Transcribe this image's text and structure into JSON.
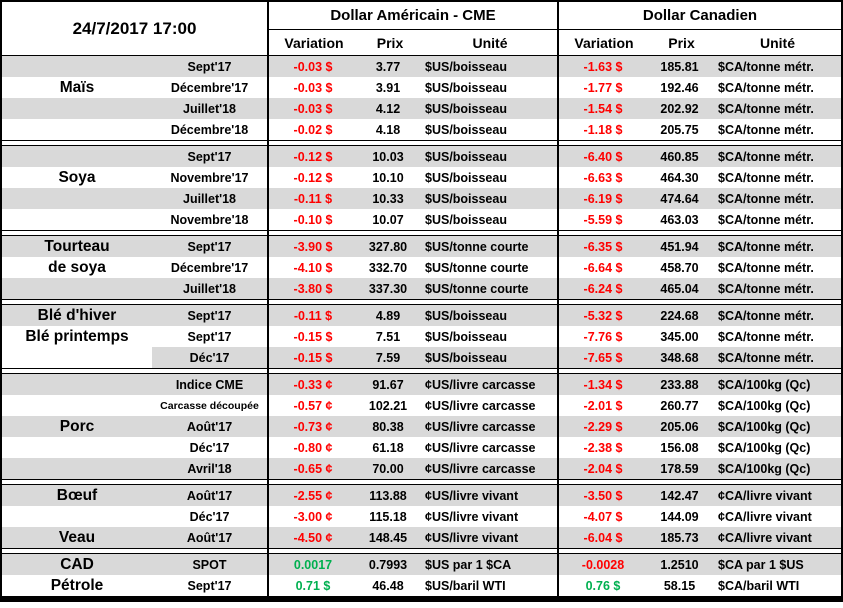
{
  "meta": {
    "timestamp": "24/7/2017 17:00"
  },
  "header": {
    "us_title": "Dollar Américain - CME",
    "ca_title": "Dollar Canadien",
    "variation_label": "Variation",
    "prix_label": "Prix",
    "unite_label": "Unité"
  },
  "colors": {
    "negative": "#FF0000",
    "positive": "#00B050",
    "row_shade": "#D9D9D9",
    "border": "#000000"
  },
  "groups": [
    {
      "name": "Maïs",
      "rows": [
        {
          "label": "",
          "month": "Sept'17",
          "shaded": true,
          "shade_from_month": false,
          "small_month": false,
          "us_var": "-0.03 $",
          "us_sign": "negative",
          "us_price": "3.77",
          "us_unit": "$US/boisseau",
          "ca_var": "-1.63 $",
          "ca_sign": "negative",
          "ca_price": "185.81",
          "ca_unit": "$CA/tonne métr."
        },
        {
          "label": "Maïs",
          "month": "Décembre'17",
          "shaded": false,
          "shade_from_month": false,
          "small_month": false,
          "us_var": "-0.03 $",
          "us_sign": "negative",
          "us_price": "3.91",
          "us_unit": "$US/boisseau",
          "ca_var": "-1.77 $",
          "ca_sign": "negative",
          "ca_price": "192.46",
          "ca_unit": "$CA/tonne métr."
        },
        {
          "label": "",
          "month": "Juillet'18",
          "shaded": true,
          "shade_from_month": false,
          "small_month": false,
          "us_var": "-0.03 $",
          "us_sign": "negative",
          "us_price": "4.12",
          "us_unit": "$US/boisseau",
          "ca_var": "-1.54 $",
          "ca_sign": "negative",
          "ca_price": "202.92",
          "ca_unit": "$CA/tonne métr."
        },
        {
          "label": "",
          "month": "Décembre'18",
          "shaded": false,
          "shade_from_month": false,
          "small_month": false,
          "us_var": "-0.02 $",
          "us_sign": "negative",
          "us_price": "4.18",
          "us_unit": "$US/boisseau",
          "ca_var": "-1.18 $",
          "ca_sign": "negative",
          "ca_price": "205.75",
          "ca_unit": "$CA/tonne métr."
        }
      ]
    },
    {
      "name": "Soya",
      "rows": [
        {
          "label": "",
          "month": "Sept'17",
          "shaded": true,
          "shade_from_month": false,
          "small_month": false,
          "us_var": "-0.12 $",
          "us_sign": "negative",
          "us_price": "10.03",
          "us_unit": "$US/boisseau",
          "ca_var": "-6.40 $",
          "ca_sign": "negative",
          "ca_price": "460.85",
          "ca_unit": "$CA/tonne métr."
        },
        {
          "label": "Soya",
          "month": "Novembre'17",
          "shaded": false,
          "shade_from_month": false,
          "small_month": false,
          "us_var": "-0.12 $",
          "us_sign": "negative",
          "us_price": "10.10",
          "us_unit": "$US/boisseau",
          "ca_var": "-6.63 $",
          "ca_sign": "negative",
          "ca_price": "464.30",
          "ca_unit": "$CA/tonne métr."
        },
        {
          "label": "",
          "month": "Juillet'18",
          "shaded": true,
          "shade_from_month": false,
          "small_month": false,
          "us_var": "-0.11 $",
          "us_sign": "negative",
          "us_price": "10.33",
          "us_unit": "$US/boisseau",
          "ca_var": "-6.19 $",
          "ca_sign": "negative",
          "ca_price": "474.64",
          "ca_unit": "$CA/tonne métr."
        },
        {
          "label": "",
          "month": "Novembre'18",
          "shaded": false,
          "shade_from_month": false,
          "small_month": false,
          "us_var": "-0.10 $",
          "us_sign": "negative",
          "us_price": "10.07",
          "us_unit": "$US/boisseau",
          "ca_var": "-5.59 $",
          "ca_sign": "negative",
          "ca_price": "463.03",
          "ca_unit": "$CA/tonne métr."
        }
      ]
    },
    {
      "name": "Tourteau de soya",
      "rows": [
        {
          "label": "Tourteau",
          "month": "Sept'17",
          "shaded": true,
          "shade_from_month": false,
          "small_month": false,
          "us_var": "-3.90 $",
          "us_sign": "negative",
          "us_price": "327.80",
          "us_unit": "$US/tonne courte",
          "ca_var": "-6.35 $",
          "ca_sign": "negative",
          "ca_price": "451.94",
          "ca_unit": "$CA/tonne métr."
        },
        {
          "label": "de soya",
          "month": "Décembre'17",
          "shaded": false,
          "shade_from_month": false,
          "small_month": false,
          "us_var": "-4.10 $",
          "us_sign": "negative",
          "us_price": "332.70",
          "us_unit": "$US/tonne courte",
          "ca_var": "-6.64 $",
          "ca_sign": "negative",
          "ca_price": "458.70",
          "ca_unit": "$CA/tonne métr."
        },
        {
          "label": "",
          "month": "Juillet'18",
          "shaded": true,
          "shade_from_month": false,
          "small_month": false,
          "us_var": "-3.80 $",
          "us_sign": "negative",
          "us_price": "337.30",
          "us_unit": "$US/tonne courte",
          "ca_var": "-6.24 $",
          "ca_sign": "negative",
          "ca_price": "465.04",
          "ca_unit": "$CA/tonne métr."
        }
      ]
    },
    {
      "name": "Blé",
      "rows": [
        {
          "label": "Blé d'hiver",
          "month": "Sept'17",
          "shaded": true,
          "shade_from_month": false,
          "small_month": false,
          "us_var": "-0.11 $",
          "us_sign": "negative",
          "us_price": "4.89",
          "us_unit": "$US/boisseau",
          "ca_var": "-5.32 $",
          "ca_sign": "negative",
          "ca_price": "224.68",
          "ca_unit": "$CA/tonne métr."
        },
        {
          "label": "Blé printemps",
          "month": "Sept'17",
          "shaded": false,
          "shade_from_month": false,
          "small_month": false,
          "us_var": "-0.15 $",
          "us_sign": "negative",
          "us_price": "7.51",
          "us_unit": "$US/boisseau",
          "ca_var": "-7.76 $",
          "ca_sign": "negative",
          "ca_price": "345.00",
          "ca_unit": "$CA/tonne métr."
        },
        {
          "label": "",
          "month": "Déc'17",
          "shaded": true,
          "shade_from_month": true,
          "small_month": false,
          "us_var": "-0.15 $",
          "us_sign": "negative",
          "us_price": "7.59",
          "us_unit": "$US/boisseau",
          "ca_var": "-7.65 $",
          "ca_sign": "negative",
          "ca_price": "348.68",
          "ca_unit": "$CA/tonne métr."
        }
      ]
    },
    {
      "name": "Porc",
      "rows": [
        {
          "label": "",
          "month": "Indice CME",
          "shaded": true,
          "shade_from_month": false,
          "small_month": false,
          "us_var": "-0.33 ¢",
          "us_sign": "negative",
          "us_price": "91.67",
          "us_unit": "¢US/livre carcasse",
          "ca_var": "-1.34 $",
          "ca_sign": "negative",
          "ca_price": "233.88",
          "ca_unit": "$CA/100kg (Qc)"
        },
        {
          "label": "",
          "month": "Carcasse découpée",
          "shaded": false,
          "shade_from_month": false,
          "small_month": true,
          "us_var": "-0.57 ¢",
          "us_sign": "negative",
          "us_price": "102.21",
          "us_unit": "¢US/livre carcasse",
          "ca_var": "-2.01 $",
          "ca_sign": "negative",
          "ca_price": "260.77",
          "ca_unit": "$CA/100kg (Qc)"
        },
        {
          "label": "Porc",
          "month": "Août'17",
          "shaded": true,
          "shade_from_month": false,
          "small_month": false,
          "us_var": "-0.73 ¢",
          "us_sign": "negative",
          "us_price": "80.38",
          "us_unit": "¢US/livre carcasse",
          "ca_var": "-2.29 $",
          "ca_sign": "negative",
          "ca_price": "205.06",
          "ca_unit": "$CA/100kg (Qc)"
        },
        {
          "label": "",
          "month": "Déc'17",
          "shaded": false,
          "shade_from_month": false,
          "small_month": false,
          "us_var": "-0.80 ¢",
          "us_sign": "negative",
          "us_price": "61.18",
          "us_unit": "¢US/livre carcasse",
          "ca_var": "-2.38 $",
          "ca_sign": "negative",
          "ca_price": "156.08",
          "ca_unit": "$CA/100kg (Qc)"
        },
        {
          "label": "",
          "month": "Avril'18",
          "shaded": true,
          "shade_from_month": false,
          "small_month": false,
          "us_var": "-0.65 ¢",
          "us_sign": "negative",
          "us_price": "70.00",
          "us_unit": "¢US/livre carcasse",
          "ca_var": "-2.04 $",
          "ca_sign": "negative",
          "ca_price": "178.59",
          "ca_unit": "$CA/100kg (Qc)"
        }
      ]
    },
    {
      "name": "Bœuf / Veau",
      "rows": [
        {
          "label": "Bœuf",
          "month": "Août'17",
          "shaded": true,
          "shade_from_month": false,
          "small_month": false,
          "us_var": "-2.55 ¢",
          "us_sign": "negative",
          "us_price": "113.88",
          "us_unit": "¢US/livre vivant",
          "ca_var": "-3.50 $",
          "ca_sign": "negative",
          "ca_price": "142.47",
          "ca_unit": "¢CA/livre vivant"
        },
        {
          "label": "",
          "month": "Déc'17",
          "shaded": false,
          "shade_from_month": false,
          "small_month": false,
          "us_var": "-3.00 ¢",
          "us_sign": "negative",
          "us_price": "115.18",
          "us_unit": "¢US/livre vivant",
          "ca_var": "-4.07 $",
          "ca_sign": "negative",
          "ca_price": "144.09",
          "ca_unit": "¢CA/livre vivant"
        },
        {
          "label": "Veau",
          "month": "Août'17",
          "shaded": true,
          "shade_from_month": false,
          "small_month": false,
          "us_var": "-4.50 ¢",
          "us_sign": "negative",
          "us_price": "148.45",
          "us_unit": "¢US/livre vivant",
          "ca_var": "-6.04 $",
          "ca_sign": "negative",
          "ca_price": "185.73",
          "ca_unit": "¢CA/livre vivant"
        }
      ]
    },
    {
      "name": "CAD / Pétrole",
      "rows": [
        {
          "label": "CAD",
          "month": "SPOT",
          "shaded": true,
          "shade_from_month": false,
          "small_month": false,
          "us_var": "0.0017",
          "us_sign": "positive",
          "us_price": "0.7993",
          "us_unit": "$US par 1 $CA",
          "ca_var": "-0.0028",
          "ca_sign": "negative",
          "ca_price": "1.2510",
          "ca_unit": "$CA par 1 $US"
        },
        {
          "label": "Pétrole",
          "month": "Sept'17",
          "shaded": false,
          "shade_from_month": false,
          "small_month": false,
          "us_var": "0.71 $",
          "us_sign": "positive",
          "us_price": "46.48",
          "us_unit": "$US/baril WTI",
          "ca_var": "0.76 $",
          "ca_sign": "positive",
          "ca_price": "58.15",
          "ca_unit": "$CA/baril WTI"
        }
      ]
    }
  ]
}
